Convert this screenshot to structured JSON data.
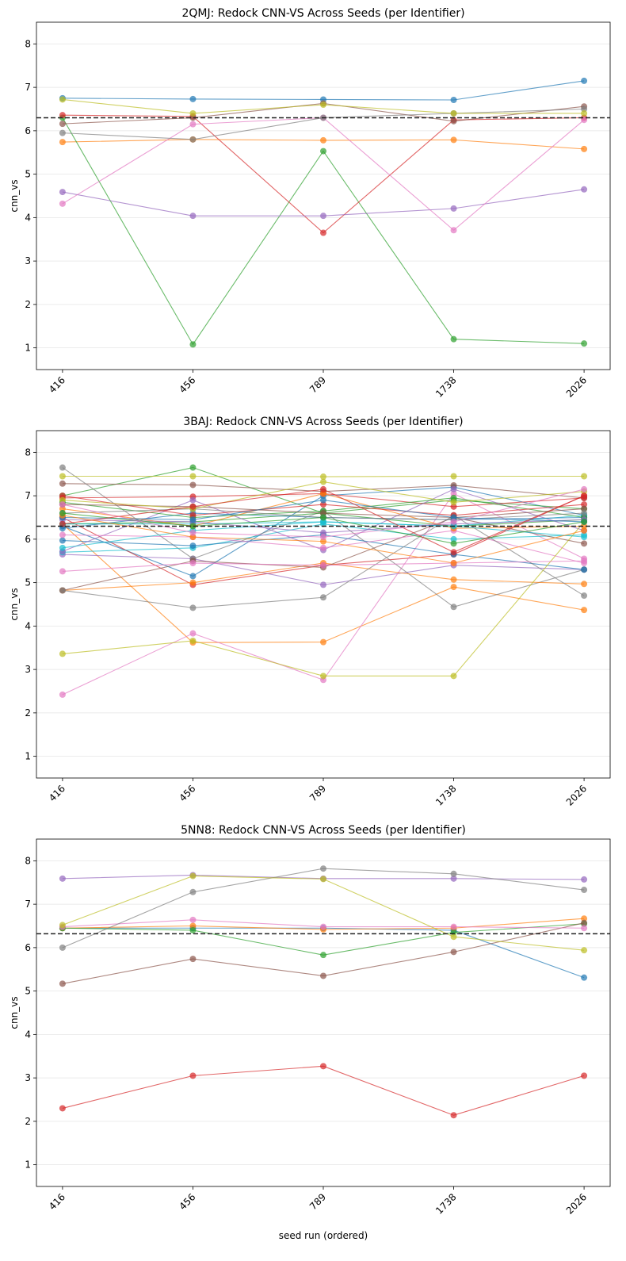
{
  "chart_data": [
    {
      "type": "line",
      "title": "2QMJ: Redock CNN-VS Across Seeds (per Identifier)",
      "xlabel": "",
      "ylabel": "cnn_vs",
      "categories": [
        "416",
        "456",
        "789",
        "1738",
        "2026"
      ],
      "ylim": [
        0.5,
        8.5
      ],
      "yticks": [
        1,
        2,
        3,
        4,
        5,
        6,
        7,
        8
      ],
      "grid": "y",
      "reference_line": 6.3,
      "series": [
        {
          "color": "#1f77b4",
          "values": [
            6.75,
            6.73,
            6.72,
            6.71,
            7.15
          ]
        },
        {
          "color": "#ff7f0e",
          "values": [
            5.74,
            5.8,
            5.78,
            5.79,
            5.58
          ]
        },
        {
          "color": "#2ca02c",
          "values": [
            6.3,
            1.08,
            5.53,
            1.2,
            1.1
          ]
        },
        {
          "color": "#d62728",
          "values": [
            6.36,
            6.33,
            3.65,
            6.25,
            6.3
          ]
        },
        {
          "color": "#9467bd",
          "values": [
            4.59,
            4.04,
            4.04,
            4.21,
            4.65
          ]
        },
        {
          "color": "#8c564b",
          "values": [
            6.16,
            6.3,
            6.63,
            6.22,
            6.56
          ]
        },
        {
          "color": "#e377c2",
          "values": [
            4.32,
            6.15,
            6.3,
            3.71,
            6.25
          ]
        },
        {
          "color": "#7f7f7f",
          "values": [
            5.95,
            5.8,
            6.3,
            6.4,
            6.5
          ]
        },
        {
          "color": "#bcbd22",
          "values": [
            6.72,
            6.4,
            6.6,
            6.4,
            6.4
          ]
        }
      ]
    },
    {
      "type": "line",
      "title": "3BAJ: Redock CNN-VS Across Seeds (per Identifier)",
      "xlabel": "",
      "ylabel": "cnn_vs",
      "categories": [
        "416",
        "456",
        "789",
        "1738",
        "2026"
      ],
      "ylim": [
        0.5,
        8.5
      ],
      "yticks": [
        1,
        2,
        3,
        4,
        5,
        6,
        7,
        8
      ],
      "grid": "y",
      "reference_line": 6.3,
      "series": [
        {
          "color": "#1f77b4",
          "values": [
            6.3,
            5.15,
            7.0,
            7.2,
            6.55
          ]
        },
        {
          "color": "#ff7f0e",
          "values": [
            6.35,
            3.62,
            3.63,
            4.9,
            4.37
          ]
        },
        {
          "color": "#2ca02c",
          "values": [
            7.0,
            7.65,
            6.6,
            6.9,
            6.7
          ]
        },
        {
          "color": "#d62728",
          "values": [
            6.5,
            4.95,
            5.4,
            5.65,
            7.0
          ]
        },
        {
          "color": "#9467bd",
          "values": [
            5.65,
            5.55,
            4.95,
            5.4,
            5.3
          ]
        },
        {
          "color": "#8c564b",
          "values": [
            7.28,
            7.25,
            7.1,
            7.24,
            6.95
          ]
        },
        {
          "color": "#e377c2",
          "values": [
            2.42,
            3.83,
            2.76,
            7.05,
            5.55
          ]
        },
        {
          "color": "#7f7f7f",
          "values": [
            7.65,
            5.55,
            6.65,
            4.44,
            5.3
          ]
        },
        {
          "color": "#bcbd22",
          "values": [
            7.45,
            7.45,
            7.44,
            7.45,
            7.45
          ]
        },
        {
          "color": "#17becf",
          "values": [
            5.7,
            5.8,
            6.35,
            6.0,
            6.1
          ]
        },
        {
          "color": "#1f77b4",
          "values": [
            5.97,
            5.85,
            6.1,
            5.65,
            5.3
          ]
        },
        {
          "color": "#ff7f0e",
          "values": [
            4.82,
            5.0,
            5.45,
            5.07,
            4.97
          ]
        },
        {
          "color": "#2ca02c",
          "values": [
            6.35,
            6.4,
            6.6,
            6.3,
            6.45
          ]
        },
        {
          "color": "#d62728",
          "values": [
            6.95,
            6.98,
            7.05,
            6.75,
            6.95
          ]
        },
        {
          "color": "#9467bd",
          "values": [
            5.72,
            6.9,
            5.75,
            7.15,
            6.2
          ]
        },
        {
          "color": "#8c564b",
          "values": [
            4.82,
            5.5,
            5.35,
            6.5,
            5.9
          ]
        },
        {
          "color": "#e377c2",
          "values": [
            6.1,
            6.05,
            5.8,
            6.2,
            5.45
          ]
        },
        {
          "color": "#7f7f7f",
          "values": [
            4.82,
            4.42,
            4.66,
            6.55,
            4.7
          ]
        },
        {
          "color": "#bcbd22",
          "values": [
            3.36,
            3.66,
            2.85,
            2.85,
            6.4
          ]
        },
        {
          "color": "#17becf",
          "values": [
            6.35,
            6.35,
            6.4,
            6.3,
            6.55
          ]
        },
        {
          "color": "#1f77b4",
          "values": [
            6.25,
            6.6,
            6.5,
            6.45,
            6.5
          ]
        },
        {
          "color": "#ff7f0e",
          "values": [
            6.7,
            6.3,
            7.05,
            6.25,
            6.3
          ]
        },
        {
          "color": "#2ca02c",
          "values": [
            6.85,
            6.5,
            6.65,
            6.95,
            6.5
          ]
        },
        {
          "color": "#d62728",
          "values": [
            7.0,
            6.55,
            6.8,
            6.55,
            6.8
          ]
        },
        {
          "color": "#9467bd",
          "values": [
            6.45,
            6.4,
            6.15,
            6.35,
            6.45
          ]
        },
        {
          "color": "#8c564b",
          "values": [
            6.8,
            6.75,
            6.6,
            6.5,
            6.7
          ]
        },
        {
          "color": "#e377c2",
          "values": [
            5.26,
            5.45,
            5.4,
            5.45,
            5.5
          ]
        },
        {
          "color": "#7f7f7f",
          "values": [
            6.6,
            6.7,
            6.5,
            6.45,
            6.6
          ]
        },
        {
          "color": "#bcbd22",
          "values": [
            6.9,
            6.7,
            7.32,
            6.85,
            7.1
          ]
        },
        {
          "color": "#17becf",
          "values": [
            5.8,
            6.2,
            6.4,
            6.3,
            6.05
          ]
        },
        {
          "color": "#1f77b4",
          "values": [
            6.5,
            6.45,
            6.9,
            6.5,
            6.4
          ]
        },
        {
          "color": "#ff7f0e",
          "values": [
            6.55,
            6.05,
            5.95,
            5.45,
            6.2
          ]
        },
        {
          "color": "#2ca02c",
          "values": [
            6.6,
            6.3,
            6.5,
            5.9,
            6.4
          ]
        },
        {
          "color": "#d62728",
          "values": [
            6.35,
            6.75,
            7.15,
            5.7,
            7.0
          ]
        },
        {
          "color": "#e377c2",
          "values": [
            6.8,
            6.15,
            6.05,
            6.4,
            7.15
          ]
        }
      ]
    },
    {
      "type": "line",
      "title": "5NN8: Redock CNN-VS Across Seeds (per Identifier)",
      "xlabel": "seed run (ordered)",
      "ylabel": "cnn_vs",
      "categories": [
        "416",
        "456",
        "789",
        "1738",
        "2026"
      ],
      "ylim": [
        0.5,
        8.5
      ],
      "yticks": [
        1,
        2,
        3,
        4,
        5,
        6,
        7,
        8
      ],
      "grid": "y",
      "reference_line": 6.32,
      "series": [
        {
          "color": "#1f77b4",
          "values": [
            6.45,
            6.45,
            6.45,
            6.4,
            5.31
          ]
        },
        {
          "color": "#ff7f0e",
          "values": [
            6.45,
            6.5,
            6.42,
            6.45,
            6.67
          ]
        },
        {
          "color": "#2ca02c",
          "values": [
            6.45,
            6.4,
            5.83,
            6.35,
            6.55
          ]
        },
        {
          "color": "#d62728",
          "values": [
            2.3,
            3.05,
            3.27,
            2.14,
            3.05
          ]
        },
        {
          "color": "#9467bd",
          "values": [
            7.59,
            7.67,
            7.59,
            7.59,
            7.57
          ]
        },
        {
          "color": "#8c564b",
          "values": [
            5.17,
            5.74,
            5.35,
            5.9,
            6.57
          ]
        },
        {
          "color": "#e377c2",
          "values": [
            6.48,
            6.64,
            6.48,
            6.48,
            6.45
          ]
        },
        {
          "color": "#7f7f7f",
          "values": [
            6.0,
            7.28,
            7.82,
            7.7,
            7.33
          ]
        },
        {
          "color": "#bcbd22",
          "values": [
            6.52,
            7.65,
            7.58,
            6.25,
            5.94
          ]
        }
      ]
    }
  ]
}
